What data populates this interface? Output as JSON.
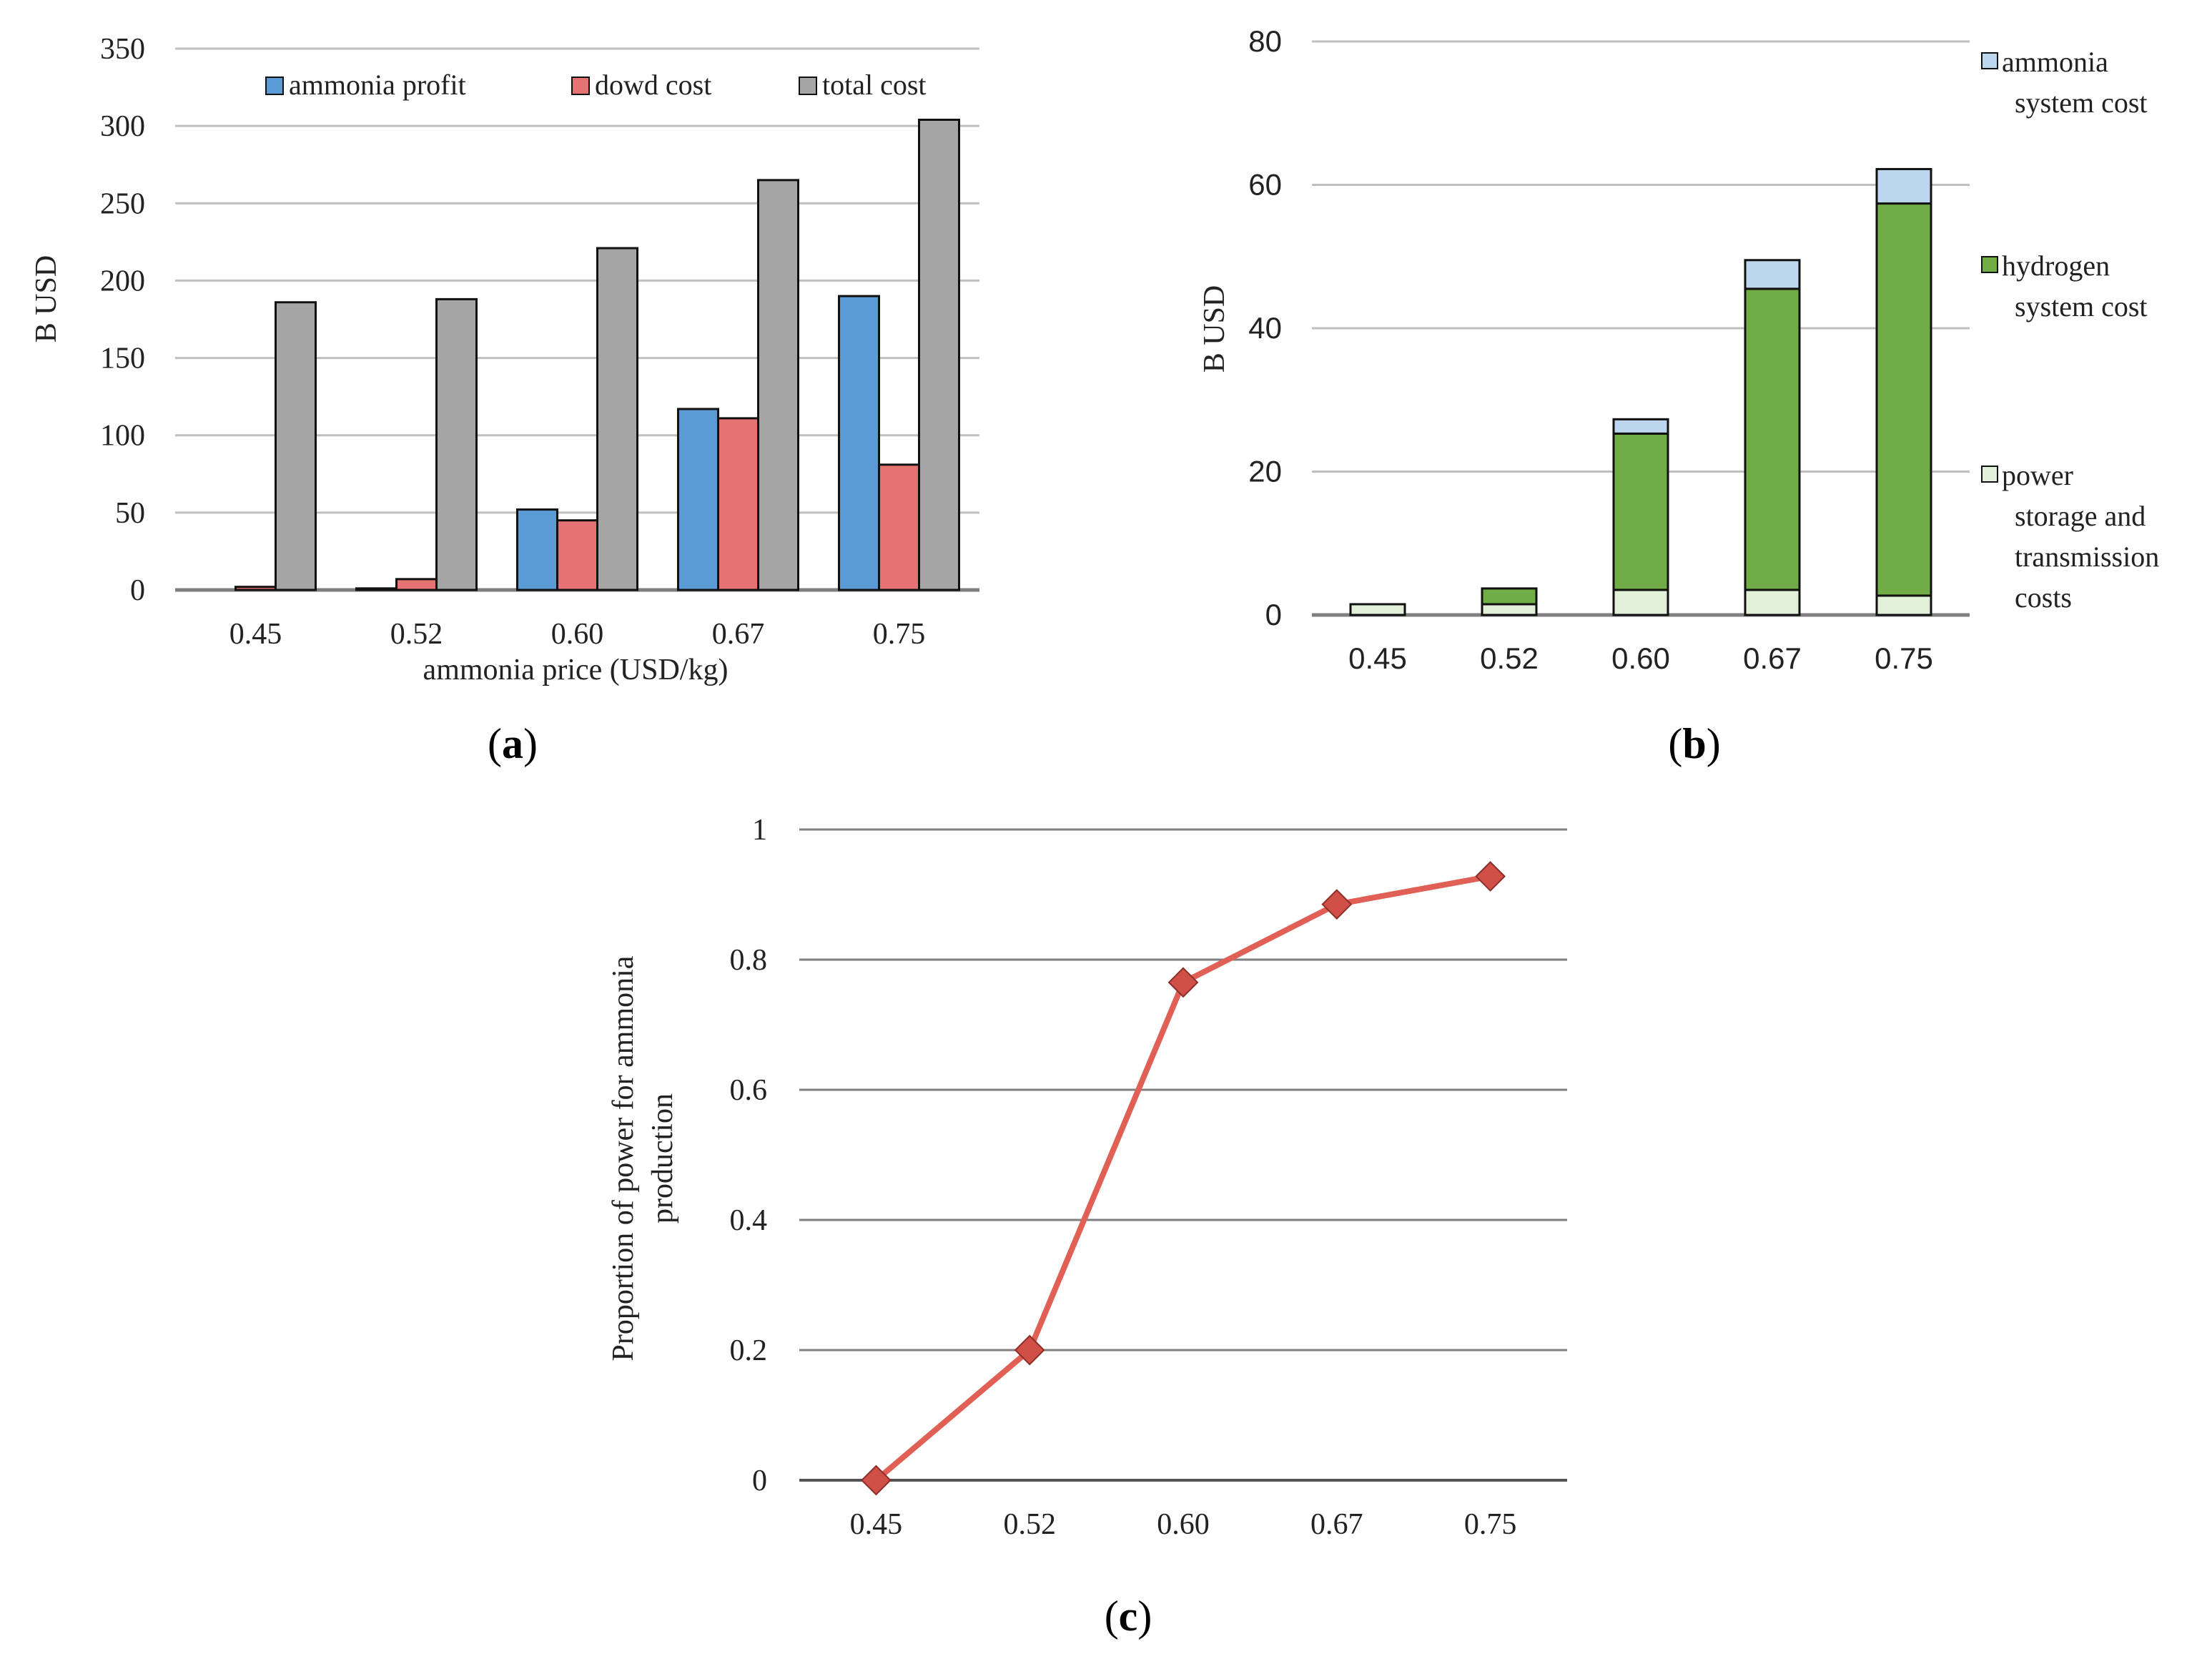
{
  "chart_data": [
    {
      "panel": "a",
      "type": "bar",
      "panel_label": "a",
      "categories": [
        "0.45",
        "0.52",
        "0.60",
        "0.67",
        "0.75"
      ],
      "xlabel": "ammonia price (USD/kg)",
      "ylabel": "B USD",
      "ylim": [
        0,
        350
      ],
      "yticks": [
        "0",
        "50",
        "100",
        "150",
        "200",
        "250",
        "300",
        "350"
      ],
      "grid": true,
      "legend_position": "top",
      "series": [
        {
          "name": "ammonia profit",
          "color": "#5B9BD5",
          "values": [
            0,
            1,
            52,
            117,
            190
          ]
        },
        {
          "name": "dowd cost",
          "color": "#E57373",
          "values": [
            2,
            7,
            45,
            111,
            81
          ]
        },
        {
          "name": "total cost",
          "color": "#A5A5A5",
          "values": [
            186,
            188,
            221,
            265,
            304
          ]
        }
      ]
    },
    {
      "panel": "b",
      "type": "bar",
      "stacked": true,
      "panel_label": "b",
      "categories": [
        "0.45",
        "0.52",
        "0.60",
        "0.67",
        "0.75"
      ],
      "xlabel": "",
      "ylabel": "B USD",
      "ylim": [
        0,
        80
      ],
      "yticks": [
        "0",
        "20",
        "40",
        "60",
        "80"
      ],
      "grid": true,
      "legend_position": "right",
      "series": [
        {
          "name": "power storage and transmission costs",
          "legend_lines": [
            "power",
            "storage and",
            "transmission",
            "costs"
          ],
          "color": "#E2F0D9",
          "values": [
            1.5,
            1.5,
            3.5,
            3.5,
            2.7
          ]
        },
        {
          "name": "hydrogen system cost",
          "legend_lines": [
            "hydrogen",
            "system cost"
          ],
          "color": "#70AD47",
          "values": [
            0,
            2.2,
            21.8,
            42,
            54.7
          ]
        },
        {
          "name": "ammonia system cost",
          "legend_lines": [
            "ammonia",
            "system cost"
          ],
          "color": "#BDD7EE",
          "values": [
            0,
            0,
            2,
            4,
            4.8
          ]
        }
      ]
    },
    {
      "panel": "c",
      "type": "line",
      "panel_label": "c",
      "categories": [
        "0.45",
        "0.52",
        "0.60",
        "0.67",
        "0.75"
      ],
      "xlabel": "",
      "ylabel_lines": [
        "Proportion of power for ammonia",
        "production"
      ],
      "ylim": [
        0,
        1
      ],
      "yticks": [
        "0",
        "0.2",
        "0.4",
        "0.6",
        "0.8",
        "1"
      ],
      "grid": true,
      "series": [
        {
          "name": "proportion",
          "color": "#E06055",
          "marker": "diamond",
          "values": [
            0,
            0.2,
            0.765,
            0.885,
            0.928
          ]
        }
      ]
    }
  ]
}
